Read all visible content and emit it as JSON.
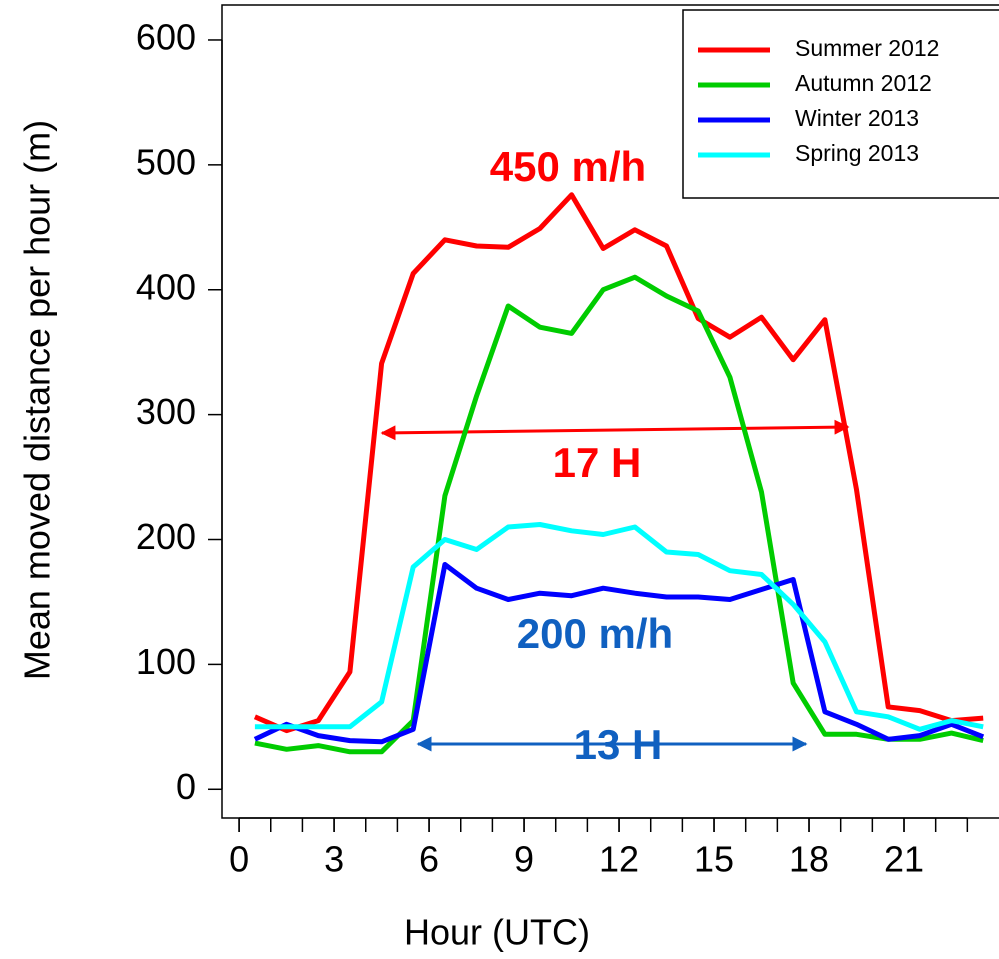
{
  "chart_data": {
    "type": "line",
    "xlabel": "Hour (UTC)",
    "ylabel": "Mean moved distance per hour (m)",
    "x": [
      0.5,
      1.5,
      2.5,
      3.5,
      4.5,
      5.5,
      6.5,
      7.5,
      8.5,
      9.5,
      10.5,
      11.5,
      12.5,
      13.5,
      14.5,
      15.5,
      16.5,
      17.5,
      18.5,
      19.5,
      20.5,
      21.5,
      22.5,
      23.5
    ],
    "series": [
      {
        "name": "Summer 2012",
        "color": "#ff0000",
        "values": [
          58,
          47,
          55,
          94,
          341,
          413,
          440,
          435,
          434,
          449,
          476,
          433,
          448,
          435,
          377,
          362,
          378,
          344,
          376,
          240,
          66,
          63,
          55,
          57
        ]
      },
      {
        "name": "Autumn 2012",
        "color": "#00cc00",
        "values": [
          37,
          32,
          35,
          30,
          30,
          55,
          235,
          315,
          387,
          370,
          365,
          400,
          410,
          395,
          383,
          330,
          238,
          85,
          44,
          44,
          40,
          40,
          45,
          39
        ]
      },
      {
        "name": "Winter 2013",
        "color": "#0000ff",
        "values": [
          40,
          52,
          43,
          39,
          38,
          48,
          180,
          161,
          152,
          157,
          155,
          161,
          157,
          154,
          154,
          152,
          160,
          168,
          62,
          52,
          40,
          43,
          52,
          42
        ]
      },
      {
        "name": "Spring 2013",
        "color": "#00ffff",
        "values": [
          50,
          50,
          50,
          50,
          70,
          178,
          200,
          192,
          210,
          212,
          207,
          204,
          210,
          190,
          188,
          175,
          172,
          148,
          118,
          62,
          58,
          48,
          55,
          50
        ]
      }
    ],
    "xlim": [
      -0.54,
      24.0
    ],
    "ylim": [
      -23,
      628
    ],
    "xticks": [
      0,
      3,
      6,
      9,
      12,
      15,
      18,
      21
    ],
    "xminorticks": [
      0,
      1,
      2,
      3,
      4,
      5,
      6,
      7,
      8,
      9,
      10,
      11,
      12,
      13,
      14,
      15,
      16,
      17,
      18,
      19,
      20,
      21,
      22,
      23
    ],
    "yticks": [
      0,
      100,
      200,
      300,
      400,
      500,
      600
    ],
    "legend": "top-right",
    "annotations": [
      {
        "text": "450 m/h",
        "color": "#ff0000"
      },
      {
        "text": "17 H",
        "color": "#ff0000"
      },
      {
        "text": "200 m/h",
        "color": "#1060c0"
      },
      {
        "text": "13 H",
        "color": "#1060c0"
      }
    ]
  }
}
